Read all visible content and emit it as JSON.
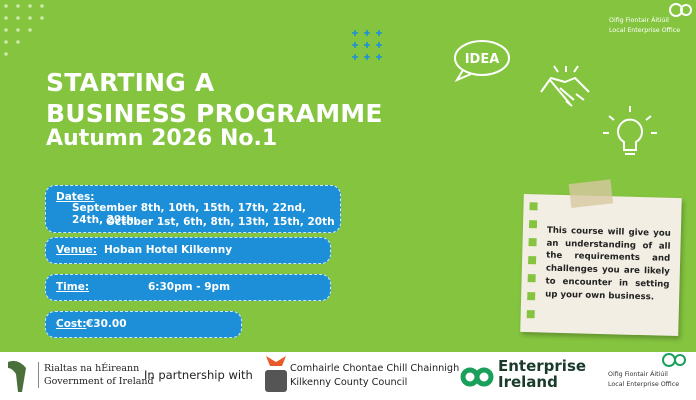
{
  "logo": {
    "irish": "Oifig Fiontair Áitiúil",
    "english": "Local Enterprise Office"
  },
  "title": {
    "line1": "STARTING A",
    "line2": "BUSINESS PROGRAMME",
    "subtitle": "Autumn 2026 No.1"
  },
  "icons": {
    "idea": "IDEA"
  },
  "details": {
    "dates": {
      "label": "Dates:",
      "lines": [
        "September 8th, 10th, 15th, 17th, 22nd, 24th, 29th,",
        "October 1st, 6th, 8th, 13th, 15th, 20th"
      ]
    },
    "venue": {
      "label": "Venue:",
      "value": "Hoban Hotel Kilkenny"
    },
    "time": {
      "label": "Time:",
      "value": "6:30pm - 9pm"
    },
    "cost": {
      "label": "Cost:",
      "value": "€30.00"
    }
  },
  "note": "This course will give you an understanding of all the requirements and challenges you are likely to encounter in setting up your own business.",
  "footer": {
    "government": {
      "irish": "Rialtas na hÉireann",
      "english": "Government of Ireland"
    },
    "partnership": "In partnership with",
    "council": {
      "irish": "Comhairle Chontae Chill Chainnigh",
      "english": "Kilkenny County Council"
    },
    "enterprise_ireland": {
      "line1": "Enterprise",
      "line2": "Ireland"
    },
    "leo": {
      "irish": "Oifig Fiontair Áitiúil",
      "english": "Local Enterprise Office"
    }
  }
}
